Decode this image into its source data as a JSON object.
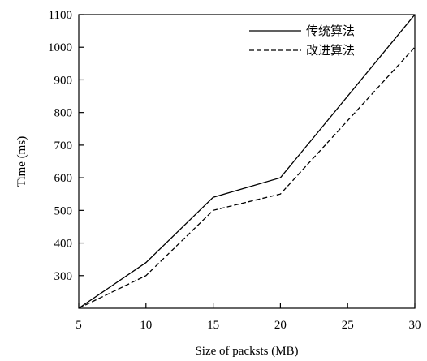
{
  "chart_data": {
    "type": "line",
    "xlabel": "Size of packsts (MB)",
    "ylabel": "Time (ms)",
    "xlim": [
      5,
      30
    ],
    "ylim": [
      200,
      1100
    ],
    "xticks": [
      "5",
      "10",
      "15",
      "20",
      "25",
      "30"
    ],
    "yticks": [
      "300",
      "400",
      "500",
      "600",
      "700",
      "800",
      "900",
      "1000",
      "1100"
    ],
    "grid": false,
    "legend_position": "top-right",
    "x": [
      5,
      10,
      15,
      20,
      30
    ],
    "series": [
      {
        "name": "传统算法",
        "style": "solid",
        "color": "#000000",
        "values": [
          200,
          340,
          540,
          600,
          1100
        ]
      },
      {
        "name": "改进算法",
        "style": "dashed",
        "color": "#000000",
        "values": [
          200,
          300,
          500,
          550,
          1000
        ]
      }
    ]
  }
}
